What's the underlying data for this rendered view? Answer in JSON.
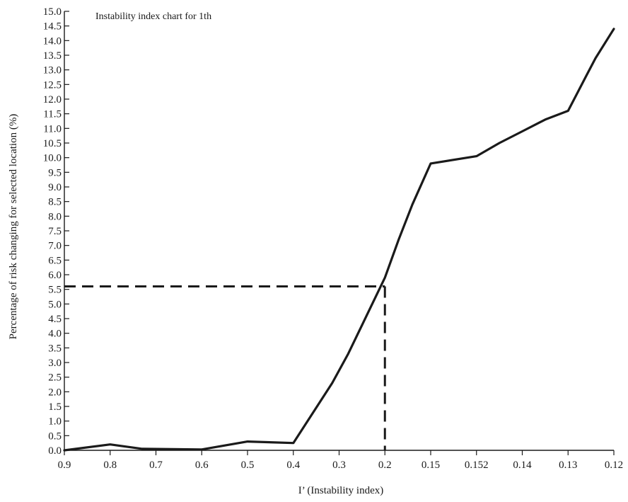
{
  "chart_data": {
    "type": "line",
    "title": "Instability index chart for 1th",
    "xlabel": "I’ (Instability index)",
    "ylabel": "Percentage of risk changing for selected location (%)",
    "categories": [
      "0.9",
      "0.8",
      "0.7",
      "0.6",
      "0.5",
      "0.4",
      "0.3",
      "0.2",
      "0.15",
      "0.152",
      "0.14",
      "0.13",
      "0.12"
    ],
    "y_ticks": [
      "0.0",
      "0.5",
      "1.0",
      "1.5",
      "2.0",
      "2.5",
      "3.0",
      "3.5",
      "4.0",
      "4.5",
      "5.0",
      "5.5",
      "6.0",
      "6.5",
      "7.0",
      "7.5",
      "8.0",
      "8.5",
      "9.0",
      "9.5",
      "10.0",
      "10.5",
      "11.0",
      "11.5",
      "12.0",
      "12.5",
      "13.0",
      "13.5",
      "14.0",
      "14.5",
      "15.0"
    ],
    "ylim": [
      0,
      15
    ],
    "grid": false,
    "legend": "none",
    "series": [
      {
        "points": [
          {
            "x": 0,
            "y": 0.0
          },
          {
            "x": 1,
            "y": 0.2
          },
          {
            "x": 1.7,
            "y": 0.05
          },
          {
            "x": 3,
            "y": 0.03
          },
          {
            "x": 4,
            "y": 0.3
          },
          {
            "x": 5,
            "y": 0.25
          },
          {
            "x": 5.85,
            "y": 2.3
          },
          {
            "x": 6.2,
            "y": 3.3
          },
          {
            "x": 6.6,
            "y": 4.6
          },
          {
            "x": 7,
            "y": 5.9
          },
          {
            "x": 7.3,
            "y": 7.2
          },
          {
            "x": 7.6,
            "y": 8.4
          },
          {
            "x": 8,
            "y": 9.8
          },
          {
            "x": 9,
            "y": 10.05
          },
          {
            "x": 9.5,
            "y": 10.5
          },
          {
            "x": 10,
            "y": 10.9
          },
          {
            "x": 10.5,
            "y": 11.3
          },
          {
            "x": 11,
            "y": 11.6
          },
          {
            "x": 11.4,
            "y": 12.8
          },
          {
            "x": 11.6,
            "y": 13.4
          },
          {
            "x": 12,
            "y": 14.4
          }
        ]
      }
    ],
    "reference_lines": {
      "x_category_index": 7,
      "y": 5.6,
      "style": "dashed"
    },
    "line_color": "#1a1a1a"
  }
}
